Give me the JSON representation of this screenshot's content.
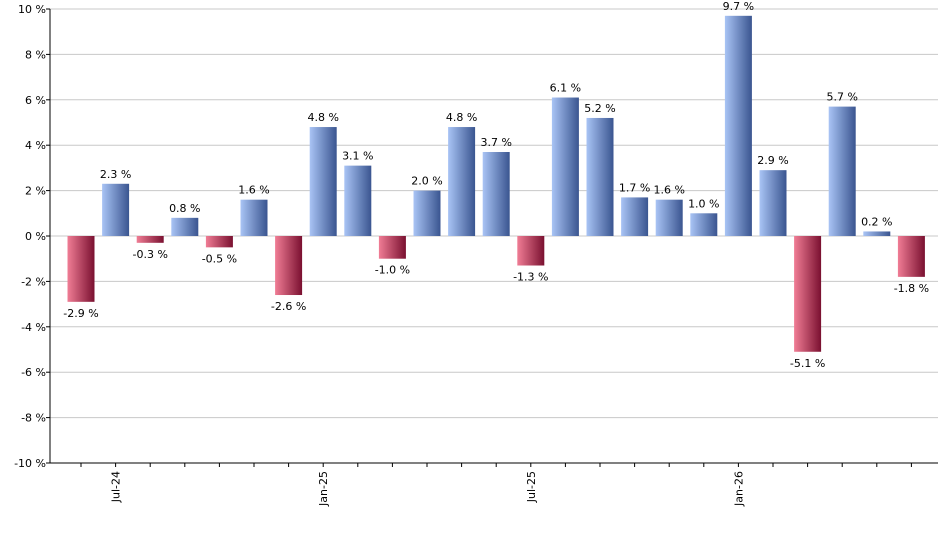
{
  "chart_data": {
    "type": "bar",
    "title": "",
    "xlabel": "",
    "ylabel": "",
    "ylim": [
      -10,
      10
    ],
    "y_ticks": [
      10,
      8,
      6,
      4,
      2,
      0,
      -2,
      -4,
      -6,
      -8,
      -10
    ],
    "y_tick_labels": [
      "10 %",
      "8 %",
      "6 %",
      "4 %",
      "2 %",
      "0 %",
      "-2 %",
      "-4 %",
      "-6 %",
      "-8 %",
      "-10 %"
    ],
    "x_tick_labels": [
      {
        "label": "Jul-24",
        "index": 1
      },
      {
        "label": "Jan-25",
        "index": 7
      },
      {
        "label": "Jul-25",
        "index": 13
      },
      {
        "label": "Jan-26",
        "index": 19
      }
    ],
    "values": [
      -2.9,
      2.3,
      -0.3,
      0.8,
      -0.5,
      1.6,
      -2.6,
      4.8,
      3.1,
      -1.0,
      2.0,
      4.8,
      3.7,
      -1.3,
      6.1,
      5.2,
      1.7,
      1.6,
      1.0,
      9.7,
      2.9,
      -5.1,
      5.7,
      0.2,
      -1.8
    ],
    "value_labels": [
      "-2.9 %",
      "2.3 %",
      "-0.3 %",
      "0.8 %",
      "-0.5 %",
      "1.6 %",
      "-2.6 %",
      "4.8 %",
      "3.1 %",
      "-1.0 %",
      "2.0 %",
      "4.8 %",
      "3.7 %",
      "-1.3 %",
      "6.1 %",
      "5.2 %",
      "1.7 %",
      "1.6 %",
      "1.0 %",
      "9.7 %",
      "2.9 %",
      "-5.1 %",
      "5.7 %",
      "0.2 %",
      "-1.8 %"
    ],
    "grid": true,
    "legend": "none",
    "colors": {
      "positive_light": "#a9c4f5",
      "positive_dark": "#3a5590",
      "negative_light": "#f07d95",
      "negative_dark": "#7a1030",
      "grid": "#c8c8c8",
      "axis": "#000000"
    }
  }
}
